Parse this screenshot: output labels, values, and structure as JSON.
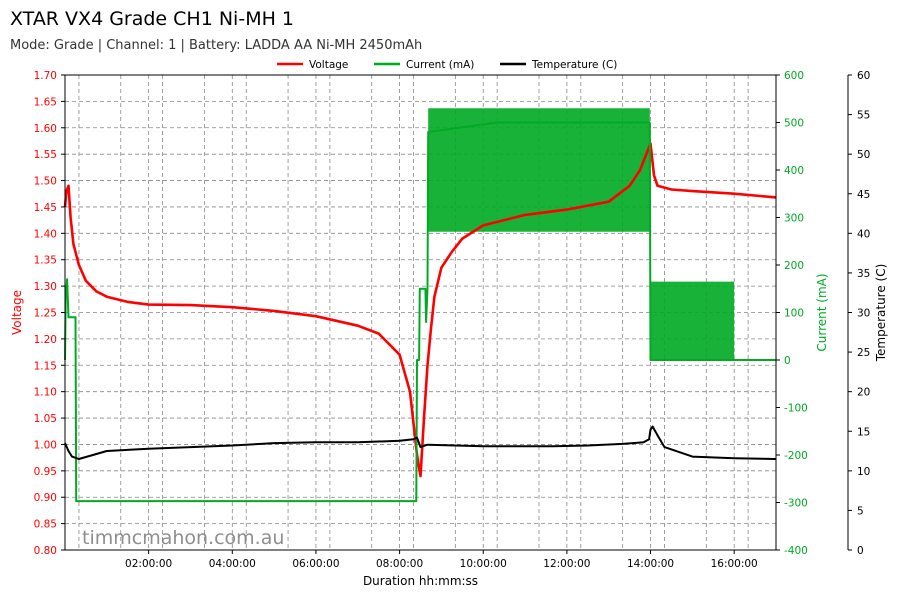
{
  "title": "XTAR VX4 Grade CH1 Ni-MH 1",
  "subtitle": "Mode: Grade | Channel: 1 | Battery: LADDA AA Ni-MH 2450mAh",
  "watermark": "timmcmahon.com.au",
  "chart_data": {
    "type": "line",
    "xlabel": "Duration hh:mm:ss",
    "x_unit": "minutes",
    "xlim": [
      0,
      1020
    ],
    "x_ticks": [
      {
        "value": 120,
        "label": "02:00:00"
      },
      {
        "value": 240,
        "label": "04:00:00"
      },
      {
        "value": 360,
        "label": "06:00:00"
      },
      {
        "value": 480,
        "label": "08:00:00"
      },
      {
        "value": 600,
        "label": "10:00:00"
      },
      {
        "value": 720,
        "label": "12:00:00"
      },
      {
        "value": 840,
        "label": "14:00:00"
      },
      {
        "value": 960,
        "label": "16:00:00"
      }
    ],
    "grid": true,
    "legend_position": "top-center",
    "axes": {
      "voltage": {
        "label": "Voltage",
        "side": "left",
        "ylim": [
          0.8,
          1.7
        ],
        "color": "#ff0000",
        "ticks": [
          "0.80",
          "0.85",
          "0.90",
          "0.95",
          "1.00",
          "1.05",
          "1.10",
          "1.15",
          "1.20",
          "1.25",
          "1.30",
          "1.35",
          "1.40",
          "1.45",
          "1.50",
          "1.55",
          "1.60",
          "1.65",
          "1.70"
        ]
      },
      "current": {
        "label": "Current (mA)",
        "side": "right",
        "ylim": [
          -400,
          600
        ],
        "color": "#00aa22",
        "ticks": [
          "-400",
          "-300",
          "-200",
          "-100",
          "0",
          "100",
          "200",
          "300",
          "400",
          "500",
          "600"
        ]
      },
      "temperature": {
        "label": "Temperature (C)",
        "side": "right-outer",
        "ylim": [
          0,
          60
        ],
        "color": "#000000",
        "ticks": [
          "0",
          "5",
          "10",
          "15",
          "20",
          "25",
          "30",
          "35",
          "40",
          "45",
          "50",
          "55",
          "60"
        ]
      }
    },
    "series": [
      {
        "name": "Voltage",
        "axis": "voltage",
        "color": "#ff0000",
        "x": [
          0,
          2,
          5,
          8,
          12,
          20,
          30,
          45,
          60,
          90,
          120,
          180,
          240,
          300,
          360,
          420,
          450,
          480,
          495,
          505,
          510,
          515,
          520,
          525,
          530,
          540,
          555,
          570,
          600,
          660,
          720,
          780,
          810,
          825,
          840,
          845,
          850,
          870,
          900,
          960,
          1020
        ],
        "y": [
          1.45,
          1.48,
          1.49,
          1.43,
          1.38,
          1.34,
          1.31,
          1.29,
          1.28,
          1.27,
          1.265,
          1.264,
          1.26,
          1.253,
          1.243,
          1.225,
          1.21,
          1.17,
          1.1,
          0.98,
          0.94,
          1.05,
          1.15,
          1.22,
          1.28,
          1.335,
          1.365,
          1.39,
          1.415,
          1.435,
          1.445,
          1.46,
          1.49,
          1.52,
          1.57,
          1.51,
          1.49,
          1.483,
          1.48,
          1.475,
          1.468
        ]
      },
      {
        "name": "Current (mA)",
        "axis": "current",
        "color": "#00aa22",
        "x": [
          0,
          1,
          3,
          5,
          15,
          16,
          60,
          200,
          400,
          504,
          505,
          508,
          509,
          517,
          518,
          520,
          521,
          620,
          720,
          839,
          840,
          960,
          961,
          1020
        ],
        "y": [
          0,
          130,
          170,
          90,
          90,
          -297,
          -297,
          -297,
          -297,
          -297,
          0,
          0,
          150,
          150,
          80,
          150,
          480,
          500,
          500,
          500,
          0,
          0,
          0,
          0
        ]
      },
      {
        "name": "Temperature (C)",
        "axis": "temperature",
        "color": "#000000",
        "x": [
          0,
          5,
          10,
          20,
          40,
          60,
          120,
          180,
          240,
          300,
          360,
          420,
          480,
          500,
          505,
          510,
          520,
          600,
          700,
          750,
          800,
          830,
          838,
          840,
          843,
          850,
          860,
          900,
          960,
          1020
        ],
        "y": [
          13.5,
          12.5,
          11.8,
          11.5,
          12.0,
          12.5,
          12.8,
          13.0,
          13.2,
          13.5,
          13.6,
          13.6,
          13.8,
          14.0,
          14.2,
          13.0,
          13.3,
          13.1,
          13.1,
          13.2,
          13.4,
          13.6,
          14.0,
          15.2,
          15.6,
          14.5,
          13.0,
          11.8,
          11.6,
          11.5
        ]
      }
    ],
    "current_bands": [
      {
        "x_start": 521,
        "x_end": 839,
        "y_low": 270,
        "y_high": 530,
        "color": "#00aa22"
      },
      {
        "x_start": 840,
        "x_end": 960,
        "y_low": 0,
        "y_high": 165,
        "color": "#00aa22"
      }
    ]
  }
}
